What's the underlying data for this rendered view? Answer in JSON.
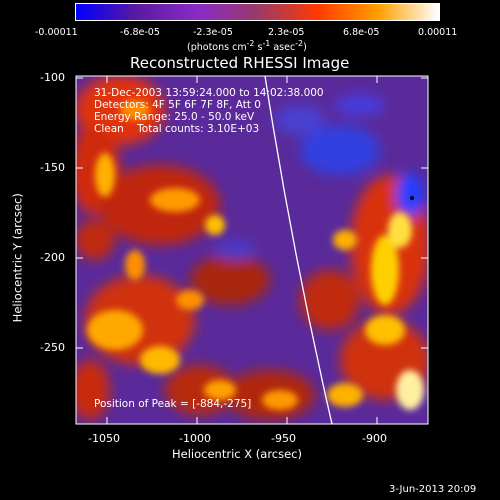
{
  "colorbar": {
    "ticks": [
      "-0.00011",
      "-6.8e-05",
      "-2.3e-05",
      "2.3e-05",
      "6.8e-05",
      "0.00011"
    ],
    "units_prefix": "(photons cm",
    "units_exp1": "-2",
    "units_mid": " s",
    "units_exp2": "-1",
    "units_mid2": " asec",
    "units_exp3": "-2",
    "units_suffix": ")",
    "colors": [
      "#0000ff",
      "#5a1aa0",
      "#8a2ac8",
      "#9a3a6a",
      "#ff3a00",
      "#ffa000",
      "#ffffff"
    ]
  },
  "plot": {
    "title": "Reconstructed RHESSI Image",
    "xlabel": "Heliocentric X (arcsec)",
    "ylabel": "Heliocentric Y (arcsec)",
    "xticks": [
      "-1050",
      "-1000",
      "-950",
      "-900"
    ],
    "yticks": [
      "-100",
      "-150",
      "-200",
      "-250"
    ],
    "xlim": [
      -1070,
      -875
    ],
    "ylim": [
      -290,
      -97
    ]
  },
  "info": {
    "line1": "31-Dec-2003 13:59:24.000 to 14:02:38.000",
    "line2": "Detectors: 4F 5F 6F 7F 8F, Att 0",
    "line3": "Energy Range: 25.0 - 50.0 keV",
    "line4": "Clean    Total counts: 3.10E+03",
    "peak": "Position of Peak = [-884,-275]"
  },
  "footer": {
    "date": "3-Jun-2013 20:09"
  }
}
